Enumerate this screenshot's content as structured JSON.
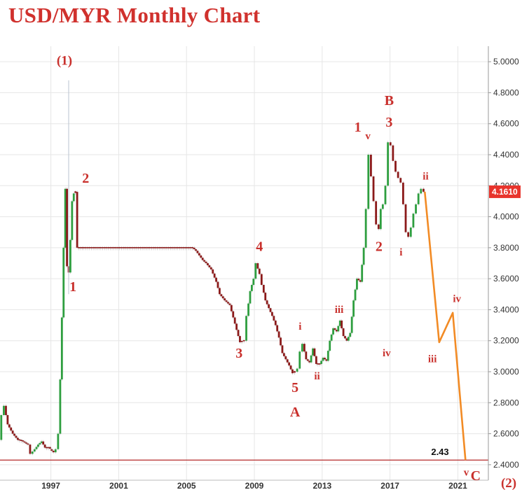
{
  "title": "USD/MYR Monthly Chart",
  "chart_data": {
    "type": "line",
    "subtype": "candlestick-monthly-with-elliott-wave-projection",
    "title": "USD/MYR Monthly Chart",
    "xlabel": "",
    "ylabel": "",
    "xlim": [
      1994.0,
      2022.8
    ],
    "ylim": [
      2.3,
      5.1
    ],
    "x_ticks": [
      "1997",
      "2001",
      "2005",
      "2009",
      "2013",
      "2017",
      "2021"
    ],
    "x_tick_values": [
      1997,
      2001,
      2005,
      2009,
      2013,
      2017,
      2021
    ],
    "y_ticks": [
      "2.4000",
      "2.6000",
      "2.8000",
      "3.0000",
      "3.2000",
      "3.4000",
      "3.6000",
      "3.8000",
      "4.0000",
      "4.2000",
      "4.4000",
      "4.6000",
      "4.8000",
      "5.0000"
    ],
    "y_tick_values": [
      2.4,
      2.6,
      2.8,
      3.0,
      3.2,
      3.4,
      3.6,
      3.8,
      4.0,
      4.2,
      4.4,
      4.6,
      4.8,
      5.0
    ],
    "y_axis_position": "right",
    "grid": true,
    "series": [
      {
        "kind": "price",
        "points": [
          [
            1994.0,
            2.56
          ],
          [
            1994.15,
            2.72
          ],
          [
            1994.3,
            2.78
          ],
          [
            1994.5,
            2.66
          ],
          [
            1994.8,
            2.6
          ],
          [
            1995.1,
            2.56
          ],
          [
            1995.4,
            2.55
          ],
          [
            1995.7,
            2.53
          ],
          [
            1995.85,
            2.47
          ],
          [
            1996.1,
            2.5
          ],
          [
            1996.3,
            2.53
          ],
          [
            1996.5,
            2.55
          ],
          [
            1996.7,
            2.51
          ],
          [
            1996.9,
            2.51
          ],
          [
            1997.0,
            2.5
          ],
          [
            1997.2,
            2.48
          ],
          [
            1997.35,
            2.5
          ],
          [
            1997.5,
            2.6
          ],
          [
            1997.6,
            2.95
          ],
          [
            1997.7,
            3.35
          ],
          [
            1997.8,
            3.8
          ],
          [
            1997.9,
            4.18
          ],
          [
            1998.0,
            3.68
          ],
          [
            1998.1,
            3.64
          ],
          [
            1998.2,
            3.85
          ],
          [
            1998.3,
            4.1
          ],
          [
            1998.4,
            4.15
          ],
          [
            1998.5,
            4.16
          ],
          [
            1998.6,
            3.8
          ],
          [
            1999.0,
            3.8
          ],
          [
            2000.0,
            3.8
          ],
          [
            2001.0,
            3.8
          ],
          [
            2002.0,
            3.8
          ],
          [
            2003.0,
            3.8
          ],
          [
            2004.0,
            3.8
          ],
          [
            2005.4,
            3.8
          ],
          [
            2005.6,
            3.78
          ],
          [
            2005.8,
            3.75
          ],
          [
            2006.0,
            3.72
          ],
          [
            2006.2,
            3.7
          ],
          [
            2006.5,
            3.66
          ],
          [
            2006.8,
            3.58
          ],
          [
            2007.0,
            3.5
          ],
          [
            2007.3,
            3.46
          ],
          [
            2007.6,
            3.43
          ],
          [
            2007.9,
            3.31
          ],
          [
            2008.2,
            3.19
          ],
          [
            2008.45,
            3.2
          ],
          [
            2008.6,
            3.36
          ],
          [
            2008.8,
            3.52
          ],
          [
            2009.0,
            3.6
          ],
          [
            2009.15,
            3.7
          ],
          [
            2009.35,
            3.63
          ],
          [
            2009.5,
            3.56
          ],
          [
            2009.7,
            3.46
          ],
          [
            2009.9,
            3.41
          ],
          [
            2010.1,
            3.36
          ],
          [
            2010.3,
            3.3
          ],
          [
            2010.5,
            3.22
          ],
          [
            2010.7,
            3.12
          ],
          [
            2010.9,
            3.08
          ],
          [
            2011.1,
            3.04
          ],
          [
            2011.3,
            2.99
          ],
          [
            2011.45,
            3.0
          ],
          [
            2011.6,
            3.02
          ],
          [
            2011.75,
            3.13
          ],
          [
            2011.9,
            3.18
          ],
          [
            2012.1,
            3.08
          ],
          [
            2012.3,
            3.06
          ],
          [
            2012.5,
            3.15
          ],
          [
            2012.7,
            3.05
          ],
          [
            2012.9,
            3.05
          ],
          [
            2013.1,
            3.09
          ],
          [
            2013.3,
            3.07
          ],
          [
            2013.5,
            3.2
          ],
          [
            2013.7,
            3.28
          ],
          [
            2013.9,
            3.26
          ],
          [
            2014.1,
            3.33
          ],
          [
            2014.3,
            3.23
          ],
          [
            2014.5,
            3.2
          ],
          [
            2014.7,
            3.25
          ],
          [
            2014.9,
            3.46
          ],
          [
            2015.1,
            3.6
          ],
          [
            2015.3,
            3.58
          ],
          [
            2015.5,
            3.8
          ],
          [
            2015.65,
            4.05
          ],
          [
            2015.8,
            4.4
          ],
          [
            2015.95,
            4.26
          ],
          [
            2016.1,
            4.1
          ],
          [
            2016.25,
            3.95
          ],
          [
            2016.4,
            3.92
          ],
          [
            2016.5,
            4.05
          ],
          [
            2016.65,
            4.08
          ],
          [
            2016.8,
            4.2
          ],
          [
            2016.95,
            4.48
          ],
          [
            2017.1,
            4.46
          ],
          [
            2017.25,
            4.36
          ],
          [
            2017.4,
            4.29
          ],
          [
            2017.55,
            4.25
          ],
          [
            2017.7,
            4.22
          ],
          [
            2017.85,
            4.08
          ],
          [
            2018.0,
            3.9
          ],
          [
            2018.15,
            3.87
          ],
          [
            2018.3,
            3.93
          ],
          [
            2018.45,
            4.02
          ],
          [
            2018.6,
            4.08
          ],
          [
            2018.75,
            4.15
          ],
          [
            2018.9,
            4.18
          ],
          [
            2019.05,
            4.161
          ]
        ]
      },
      {
        "kind": "projection",
        "points": [
          [
            2019.05,
            4.161
          ],
          [
            2019.9,
            3.19
          ],
          [
            2020.7,
            3.38
          ],
          [
            2021.45,
            2.43
          ]
        ]
      }
    ],
    "last_price": "4.1610",
    "target_line": {
      "value": 2.43,
      "label": "2.43"
    },
    "wave_labels": [
      {
        "text": "(1)",
        "x": 1997.8,
        "y": 4.98
      },
      {
        "text": "2",
        "x": 1999.05,
        "y": 4.22
      },
      {
        "text": "1",
        "x": 1998.3,
        "y": 3.52
      },
      {
        "text": "4",
        "x": 2009.3,
        "y": 3.78
      },
      {
        "text": "3",
        "x": 2008.1,
        "y": 3.09
      },
      {
        "text": "i",
        "x": 2011.7,
        "y": 3.27
      },
      {
        "text": "5",
        "x": 2011.4,
        "y": 2.87
      },
      {
        "text": "A",
        "x": 2011.4,
        "y": 2.71
      },
      {
        "text": "ii",
        "x": 2012.7,
        "y": 2.95
      },
      {
        "text": "iii",
        "x": 2014.0,
        "y": 3.38
      },
      {
        "text": "iv",
        "x": 2016.8,
        "y": 3.1
      },
      {
        "text": "1",
        "x": 2015.1,
        "y": 4.55
      },
      {
        "text": "v",
        "x": 2015.7,
        "y": 4.5
      },
      {
        "text": "B",
        "x": 2016.95,
        "y": 4.72
      },
      {
        "text": "3",
        "x": 2016.95,
        "y": 4.58
      },
      {
        "text": "2",
        "x": 2016.35,
        "y": 3.78
      },
      {
        "text": "i",
        "x": 2017.65,
        "y": 3.75
      },
      {
        "text": "ii",
        "x": 2019.1,
        "y": 4.24
      },
      {
        "text": "iv",
        "x": 2020.95,
        "y": 3.45
      },
      {
        "text": "iii",
        "x": 2019.5,
        "y": 3.06
      },
      {
        "text": "v",
        "x": 2021.5,
        "y": 2.33
      },
      {
        "text": "C",
        "x": 2022.05,
        "y": 2.3
      },
      {
        "text": "(2)",
        "x": 2024.0,
        "y": 2.25
      }
    ],
    "colors": {
      "bull_candle": "#2e9e3f",
      "bear_candle": "#8b1a1a",
      "projection": "#f28b25",
      "target_line": "#b42a2a",
      "wave_label": "#c9302c",
      "price_badge": "#e8342c",
      "grid": "#e6e6e6"
    }
  }
}
